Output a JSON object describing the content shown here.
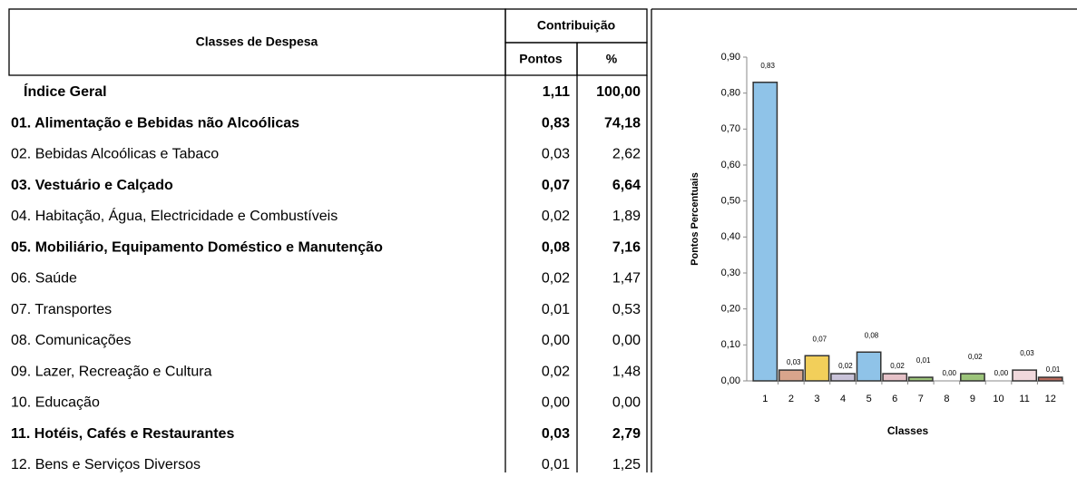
{
  "table": {
    "header": "Classes de Despesa",
    "group": "Contribuição",
    "columns": [
      "Pontos",
      "%"
    ],
    "rows": [
      {
        "label": "Índice Geral",
        "pontos": "1,11",
        "pct": "100,00",
        "bold": true
      },
      {
        "label": "01. Alimentação e Bebidas não Alcoólicas",
        "pontos": "0,83",
        "pct": "74,18",
        "bold": true
      },
      {
        "label": "02. Bebidas Alcoólicas e Tabaco",
        "pontos": "0,03",
        "pct": "2,62",
        "bold": false
      },
      {
        "label": "03. Vestuário e Calçado",
        "pontos": "0,07",
        "pct": "6,64",
        "bold": true
      },
      {
        "label": "04. Habitação, Água, Electricidade e Combustíveis",
        "pontos": "0,02",
        "pct": "1,89",
        "bold": false
      },
      {
        "label": "05. Mobiliário, Equipamento Doméstico e Manutenção",
        "pontos": "0,08",
        "pct": "7,16",
        "bold": true
      },
      {
        "label": "06. Saúde",
        "pontos": "0,02",
        "pct": "1,47",
        "bold": false
      },
      {
        "label": "07. Transportes",
        "pontos": "0,01",
        "pct": "0,53",
        "bold": false
      },
      {
        "label": "08. Comunicações",
        "pontos": "0,00",
        "pct": "0,00",
        "bold": false
      },
      {
        "label": "09. Lazer, Recreação e Cultura",
        "pontos": "0,02",
        "pct": "1,48",
        "bold": false
      },
      {
        "label": "10. Educação",
        "pontos": "0,00",
        "pct": "0,00",
        "bold": false
      },
      {
        "label": "11. Hotéis, Cafés e Restaurantes",
        "pontos": "0,03",
        "pct": "2,79",
        "bold": true
      },
      {
        "label": "12. Bens e Serviços Diversos",
        "pontos": "0,01",
        "pct": "1,25",
        "bold": false
      }
    ]
  },
  "chart_data": {
    "type": "bar",
    "x_label": "Classes",
    "y_label": "Pontos Percentuais",
    "categories": [
      "1",
      "2",
      "3",
      "4",
      "5",
      "6",
      "7",
      "8",
      "9",
      "10",
      "11",
      "12"
    ],
    "values": [
      0.83,
      0.03,
      0.07,
      0.02,
      0.08,
      0.02,
      0.01,
      0.0,
      0.02,
      0.0,
      0.03,
      0.01
    ],
    "value_labels": [
      "0,83",
      "0,03",
      "0,07",
      "0,02",
      "0,08",
      "0,02",
      "0,01",
      "0,00",
      "0,02",
      "0,00",
      "0,03",
      "0,01"
    ],
    "colors": [
      "#8fc3e8",
      "#d9a58c",
      "#f2cf5a",
      "#c9c3d9",
      "#8fc3e8",
      "#e6c2c8",
      "#9cc47a",
      "#cccccc",
      "#9cc47a",
      "#cccccc",
      "#f0d8dc",
      "#b86a5c"
    ],
    "ylim": [
      0,
      0.9
    ],
    "yticks": [
      {
        "value": 0,
        "label": "0,00"
      },
      {
        "value": 0.1,
        "label": "0,10"
      },
      {
        "value": 0.2,
        "label": "0,20"
      },
      {
        "value": 0.3,
        "label": "0,30"
      },
      {
        "value": 0.4,
        "label": "0,40"
      },
      {
        "value": 0.5,
        "label": "0,50"
      },
      {
        "value": 0.6,
        "label": "0,60"
      },
      {
        "value": 0.7,
        "label": "0,70"
      },
      {
        "value": 0.8,
        "label": "0,80"
      },
      {
        "value": 0.9,
        "label": "0,90"
      }
    ]
  }
}
